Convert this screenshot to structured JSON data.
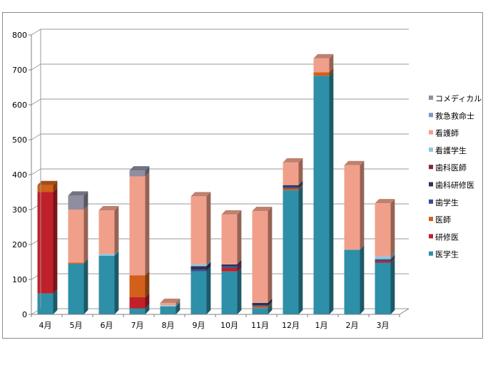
{
  "chart_data": {
    "type": "bar",
    "stacked": true,
    "three_d": true,
    "title": "",
    "xlabel": "",
    "ylabel": "",
    "ylim": [
      0,
      800
    ],
    "yticks": [
      "0",
      "100",
      "200",
      "300",
      "400",
      "500",
      "600",
      "700",
      "800"
    ],
    "grid": true,
    "legend_position": "right",
    "categories": [
      "4月",
      "5月",
      "6月",
      "7月",
      "8月",
      "9月",
      "10月",
      "11月",
      "12月",
      "1月",
      "2月",
      "3月"
    ],
    "series": [
      {
        "name": "医学生",
        "color": "#2e8fa8",
        "values": [
          60,
          145,
          168,
          17,
          23,
          123,
          123,
          18,
          355,
          683,
          185,
          148
        ]
      },
      {
        "name": "研修医",
        "color": "#c0202a",
        "values": [
          290,
          0,
          0,
          32,
          0,
          0,
          10,
          0,
          0,
          0,
          0,
          5
        ]
      },
      {
        "name": "医師",
        "color": "#d0601a",
        "values": [
          20,
          3,
          0,
          63,
          0,
          0,
          0,
          5,
          5,
          10,
          0,
          0
        ]
      },
      {
        "name": "歯学生",
        "color": "#2f4f8f",
        "values": [
          0,
          0,
          0,
          0,
          0,
          5,
          5,
          3,
          5,
          0,
          0,
          5
        ]
      },
      {
        "name": "歯科研修医",
        "color": "#2e3056",
        "values": [
          0,
          0,
          0,
          0,
          0,
          10,
          5,
          7,
          5,
          0,
          0,
          0
        ]
      },
      {
        "name": "歯科医師",
        "color": "#7b2a34",
        "values": [
          0,
          0,
          0,
          0,
          0,
          0,
          0,
          0,
          0,
          0,
          0,
          0
        ]
      },
      {
        "name": "看護学生",
        "color": "#8ec6e0",
        "values": [
          0,
          0,
          5,
          0,
          3,
          5,
          0,
          0,
          0,
          0,
          0,
          8
        ]
      },
      {
        "name": "看護師",
        "color": "#f0a08a",
        "values": [
          0,
          152,
          125,
          283,
          7,
          195,
          143,
          263,
          65,
          40,
          242,
          152
        ]
      },
      {
        "name": "救急救命士",
        "color": "#7f95c4",
        "values": [
          0,
          0,
          0,
          0,
          0,
          0,
          0,
          0,
          0,
          0,
          0,
          0
        ]
      },
      {
        "name": "コメディカル",
        "color": "#8e8ea0",
        "values": [
          0,
          40,
          0,
          17,
          0,
          0,
          0,
          0,
          0,
          0,
          0,
          0
        ]
      }
    ]
  }
}
